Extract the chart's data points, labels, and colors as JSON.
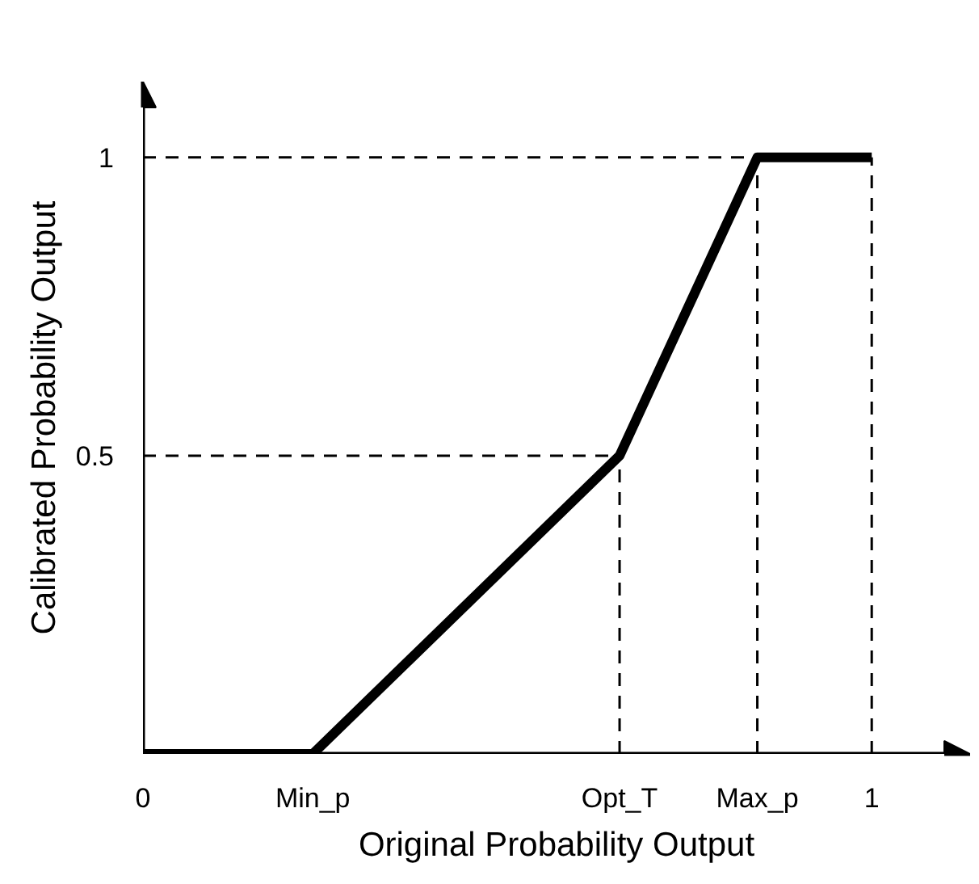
{
  "chart_data": {
    "type": "line",
    "xlabel": "Original Probability Output",
    "ylabel": "Calibrated Probability Output",
    "x": [
      0,
      0.233,
      0.654,
      0.843,
      1
    ],
    "series": [
      {
        "color": "#000000",
        "values": [
          0,
          0,
          0.5,
          1,
          1
        ]
      }
    ],
    "xlim": [
      0,
      1.135
    ],
    "ylim": [
      0,
      1.127
    ],
    "xticks": [
      0,
      {
        "value": 0.233,
        "label": "Min_p"
      },
      {
        "value": 0.654,
        "label": "Opt_T"
      },
      {
        "value": 0.843,
        "label": "Max_p"
      },
      1
    ],
    "yticks": [
      0.5,
      1
    ],
    "ref_lines": [
      {
        "axis": "x",
        "value": 0.654,
        "line_style": "dashed"
      },
      {
        "axis": "x",
        "value": 0.843,
        "line_style": "dashed"
      },
      {
        "axis": "x",
        "value": 1,
        "line_style": "dashed"
      },
      {
        "axis": "y",
        "value": 0.5,
        "line_style": "dashed"
      },
      {
        "axis": "y",
        "value": 1,
        "line_style": "dashed"
      }
    ],
    "grid": false,
    "marker": "none",
    "line_style": "solid"
  }
}
